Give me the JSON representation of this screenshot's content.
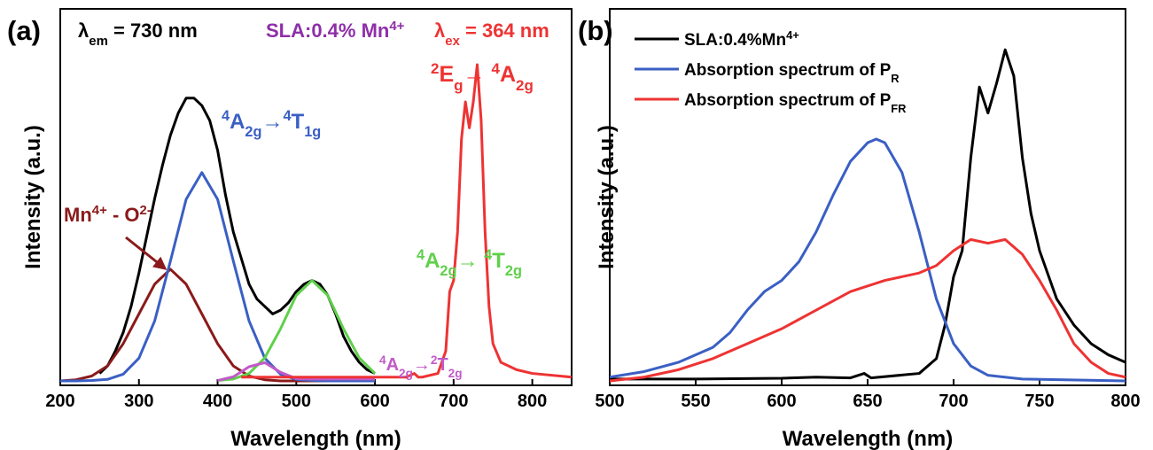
{
  "chart_data": [
    {
      "type": "line",
      "panel_label": "(a)",
      "xlabel": "Wavelength (nm)",
      "ylabel": "Intensity (a.u.)",
      "xlim": [
        200,
        850
      ],
      "ylim": [
        -0.012,
        1
      ],
      "xticks": [
        200,
        300,
        400,
        500,
        600,
        700,
        800
      ],
      "series": [
        {
          "color": "#000000",
          "x": [
            250,
            260,
            270,
            280,
            290,
            300,
            310,
            320,
            330,
            340,
            350,
            360,
            370,
            380,
            390,
            400,
            410,
            420,
            430,
            440,
            450,
            460,
            470,
            480,
            490,
            500,
            510,
            520,
            530,
            540,
            550,
            560,
            570,
            580,
            590,
            600
          ],
          "values": [
            0.02,
            0.04,
            0.08,
            0.13,
            0.2,
            0.29,
            0.39,
            0.49,
            0.58,
            0.66,
            0.72,
            0.76,
            0.76,
            0.74,
            0.7,
            0.62,
            0.5,
            0.4,
            0.33,
            0.26,
            0.22,
            0.2,
            0.18,
            0.19,
            0.21,
            0.24,
            0.26,
            0.27,
            0.26,
            0.23,
            0.18,
            0.12,
            0.08,
            0.05,
            0.03,
            0.02
          ]
        },
        {
          "color": "#8b1a1a",
          "x": [
            200,
            220,
            240,
            260,
            280,
            300,
            320,
            340,
            360,
            380,
            400,
            420,
            440,
            460,
            480,
            500,
            520,
            540,
            560,
            580,
            600
          ],
          "values": [
            0,
            0.003,
            0.013,
            0.04,
            0.1,
            0.18,
            0.26,
            0.3,
            0.26,
            0.18,
            0.1,
            0.04,
            0.013,
            0.003,
            0,
            0,
            0,
            0,
            0,
            0,
            0
          ]
        },
        {
          "color": "#3a5fc4",
          "x": [
            200,
            220,
            240,
            260,
            280,
            300,
            320,
            340,
            360,
            380,
            400,
            420,
            440,
            460,
            480,
            500,
            520,
            540,
            560,
            580,
            600
          ],
          "values": [
            0,
            0,
            0.001,
            0.004,
            0.018,
            0.061,
            0.161,
            0.322,
            0.488,
            0.56,
            0.488,
            0.322,
            0.161,
            0.061,
            0.018,
            0.004,
            0.001,
            0,
            0,
            0,
            0
          ]
        },
        {
          "color": "#5fd04a",
          "x": [
            400,
            420,
            440,
            460,
            480,
            500,
            520,
            540,
            560,
            580,
            600
          ],
          "values": [
            0.001,
            0.005,
            0.02,
            0.062,
            0.14,
            0.23,
            0.27,
            0.23,
            0.14,
            0.062,
            0.02
          ]
        },
        {
          "color": "#c05ac8",
          "x": [
            400,
            420,
            440,
            460,
            480,
            500,
            520,
            560,
            600
          ],
          "values": [
            0.001,
            0.011,
            0.038,
            0.049,
            0.023,
            0.006,
            0.005,
            0.005,
            0.005
          ]
        },
        {
          "color": "#ee3333",
          "x": [
            430,
            500,
            600,
            640,
            650,
            655,
            660,
            680,
            690,
            695,
            700,
            705,
            710,
            715,
            720,
            725,
            730,
            735,
            740,
            745,
            750,
            760,
            780,
            800,
            850
          ],
          "values": [
            0.01,
            0.01,
            0.01,
            0.01,
            0.02,
            0.01,
            0.01,
            0.02,
            0.08,
            0.24,
            0.27,
            0.4,
            0.65,
            0.75,
            0.68,
            0.75,
            0.85,
            0.7,
            0.4,
            0.2,
            0.1,
            0.05,
            0.03,
            0.02,
            0.01
          ]
        }
      ],
      "annotations": [
        {
          "color": "#000000",
          "text": [
            {
              "t": "λ"
            },
            {
              "t": "em",
              "sub": true
            },
            {
              "t": " = 730 nm"
            }
          ]
        },
        {
          "color": "#8e2fa8",
          "text": [
            {
              "t": "SLA:0.4% Mn"
            },
            {
              "t": "4+",
              "sup": true
            }
          ]
        },
        {
          "color": "#ee3333",
          "text": [
            {
              "t": "λ"
            },
            {
              "t": "ex",
              "sub": true
            },
            {
              "t": " = 364 nm"
            }
          ]
        },
        {
          "color": "#ee3333",
          "text": [
            {
              "t": "2",
              "sup": true
            },
            {
              "t": "E"
            },
            {
              "t": "g",
              "sub": true
            },
            {
              "t": "→ "
            },
            {
              "t": "4",
              "sup": true
            },
            {
              "t": "A"
            },
            {
              "t": "2g",
              "sub": true
            }
          ]
        },
        {
          "color": "#3a5fc4",
          "text": [
            {
              "t": "4",
              "sup": true
            },
            {
              "t": "A"
            },
            {
              "t": "2g",
              "sub": true
            },
            {
              "t": "→"
            },
            {
              "t": "4",
              "sup": true
            },
            {
              "t": "T"
            },
            {
              "t": "1g",
              "sub": true
            }
          ]
        },
        {
          "color": "#8b1a1a",
          "text": [
            {
              "t": "Mn"
            },
            {
              "t": "4+",
              "sup": true
            },
            {
              "t": " - O"
            },
            {
              "t": "2-",
              "sup": true
            }
          ]
        },
        {
          "color": "#5fd04a",
          "text": [
            {
              "t": "4",
              "sup": true
            },
            {
              "t": "A"
            },
            {
              "t": "2g",
              "sub": true
            },
            {
              "t": "→ "
            },
            {
              "t": "4",
              "sup": true
            },
            {
              "t": "T"
            },
            {
              "t": "2g",
              "sub": true
            }
          ]
        },
        {
          "color": "#c05ac8",
          "text": [
            {
              "t": "4",
              "sup": true
            },
            {
              "t": "A"
            },
            {
              "t": "2g",
              "sub": true
            },
            {
              "t": "→"
            },
            {
              "t": "2",
              "sup": true
            },
            {
              "t": "T"
            },
            {
              "t": "2g",
              "sub": true
            }
          ]
        }
      ]
    },
    {
      "type": "line",
      "panel_label": "(b)",
      "xlabel": "Wavelength (nm)",
      "ylabel": "Intensity (a.u.)",
      "xlim": [
        500,
        800
      ],
      "ylim": [
        -0.012,
        1
      ],
      "xticks": [
        500,
        550,
        600,
        650,
        700,
        750,
        800
      ],
      "legend": "upper left",
      "series": [
        {
          "name": [
            {
              "t": "SLA:0.4%Mn"
            },
            {
              "t": "4+",
              "sup": true
            }
          ],
          "color": "#000000",
          "x": [
            500,
            550,
            600,
            620,
            640,
            648,
            652,
            680,
            690,
            695,
            700,
            705,
            710,
            715,
            720,
            725,
            730,
            735,
            740,
            745,
            750,
            760,
            770,
            780,
            790,
            800
          ],
          "values": [
            0.005,
            0.005,
            0.007,
            0.01,
            0.008,
            0.02,
            0.008,
            0.02,
            0.06,
            0.15,
            0.28,
            0.35,
            0.6,
            0.79,
            0.72,
            0.8,
            0.89,
            0.82,
            0.6,
            0.45,
            0.35,
            0.22,
            0.15,
            0.1,
            0.07,
            0.05
          ]
        },
        {
          "name": [
            {
              "t": "Absorption spectrum of P"
            },
            {
              "t": "R",
              "sub": true
            }
          ],
          "color": "#3a5fc4",
          "x": [
            500,
            520,
            540,
            560,
            570,
            580,
            590,
            600,
            610,
            620,
            630,
            640,
            650,
            655,
            660,
            670,
            680,
            690,
            700,
            710,
            720,
            740,
            800
          ],
          "values": [
            0.01,
            0.025,
            0.05,
            0.09,
            0.13,
            0.19,
            0.24,
            0.27,
            0.32,
            0.4,
            0.5,
            0.59,
            0.64,
            0.65,
            0.64,
            0.56,
            0.4,
            0.22,
            0.1,
            0.04,
            0.015,
            0.005,
            0
          ]
        },
        {
          "name": [
            {
              "t": "Absorption spectrum of P"
            },
            {
              "t": "FR",
              "sub": true
            }
          ],
          "color": "#ee3333",
          "x": [
            500,
            520,
            540,
            560,
            580,
            600,
            620,
            640,
            660,
            680,
            690,
            700,
            710,
            720,
            730,
            740,
            750,
            760,
            770,
            780,
            790,
            800
          ],
          "values": [
            0,
            0.01,
            0.03,
            0.06,
            0.1,
            0.14,
            0.19,
            0.24,
            0.27,
            0.29,
            0.31,
            0.35,
            0.38,
            0.37,
            0.38,
            0.34,
            0.27,
            0.19,
            0.1,
            0.05,
            0.02,
            0.01
          ]
        }
      ]
    }
  ]
}
